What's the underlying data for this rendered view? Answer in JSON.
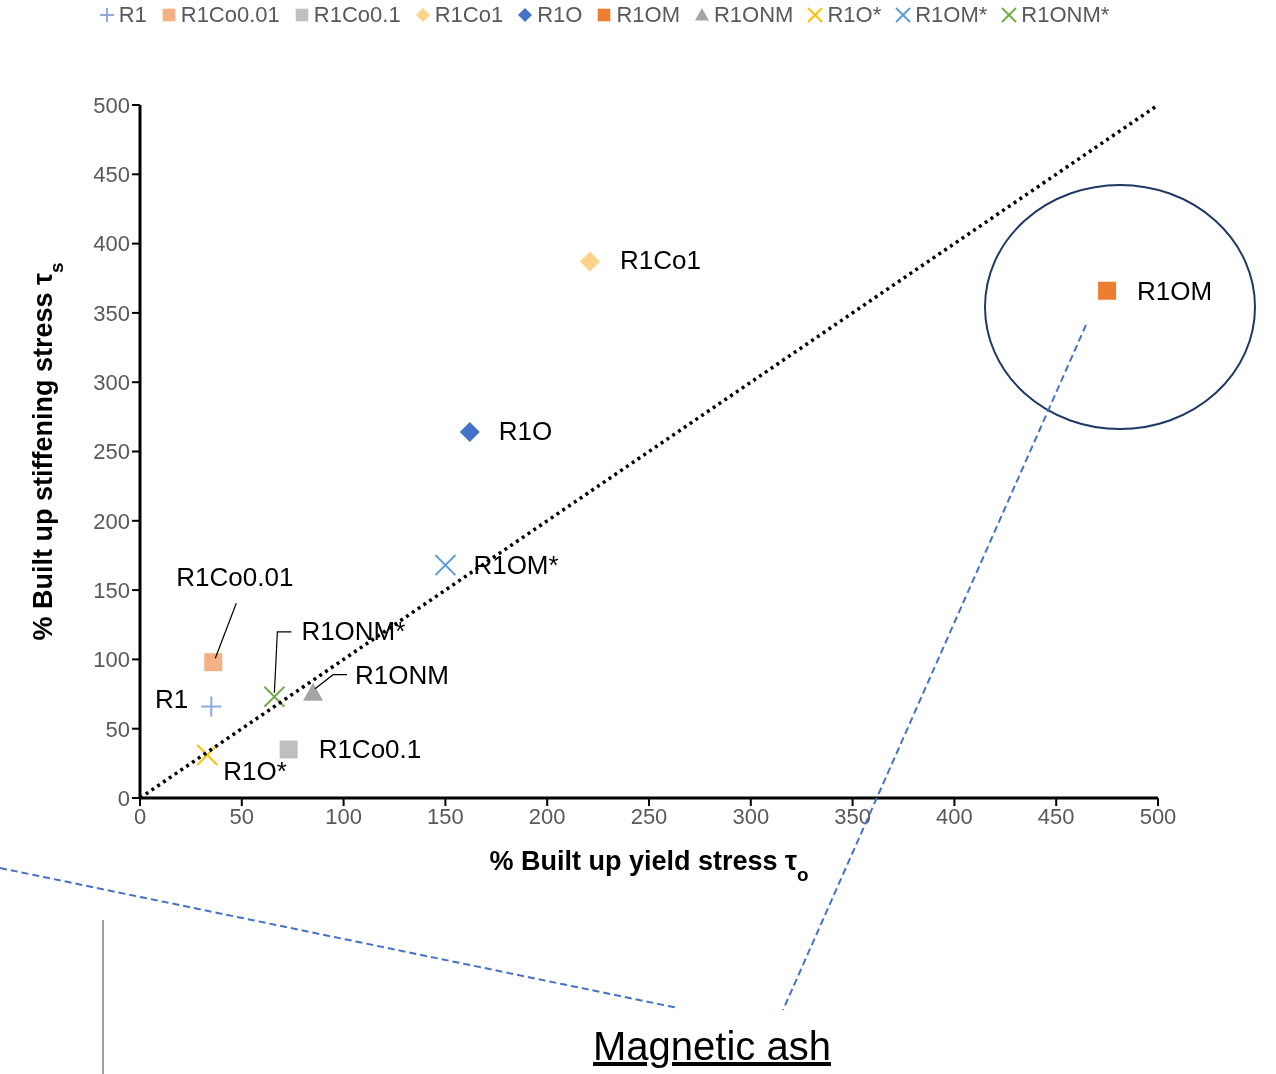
{
  "chart_data": {
    "type": "scatter",
    "xlabel": "% Built up yield stress τ$_{o}$",
    "ylabel": "% Built up stiffening stress τ$_{s}$",
    "xlim": [
      0,
      500
    ],
    "xticks": [
      0,
      50,
      100,
      150,
      200,
      250,
      300,
      350,
      400,
      450,
      500
    ],
    "ylim": [
      0,
      500
    ],
    "yticks": [
      0,
      50,
      100,
      150,
      200,
      250,
      300,
      350,
      400,
      450,
      500
    ],
    "grid": false,
    "legend": "top",
    "series": [
      {
        "name": "R1",
        "color": "#8faadc",
        "marker": "plus",
        "x": [
          35
        ],
        "values": [
          66
        ]
      },
      {
        "name": "R1Co0.01",
        "color": "#f4b183",
        "marker": "square",
        "x": [
          36
        ],
        "values": [
          98
        ]
      },
      {
        "name": "R1Co0.1",
        "color": "#bfbfbf",
        "marker": "square",
        "x": [
          73
        ],
        "values": [
          35
        ]
      },
      {
        "name": "R1Co1",
        "color": "#ffd28a",
        "marker": "diamond",
        "x": [
          221
        ],
        "values": [
          387
        ]
      },
      {
        "name": "R1O",
        "color": "#4472c4",
        "marker": "diamond",
        "x": [
          162
        ],
        "values": [
          264
        ]
      },
      {
        "name": "R1OM",
        "color": "#ed7d31",
        "marker": "square",
        "x": [
          475
        ],
        "values": [
          366
        ]
      },
      {
        "name": "R1ONM",
        "color": "#a5a5a5",
        "marker": "triangle",
        "x": [
          85
        ],
        "values": [
          76
        ]
      },
      {
        "name": "R1O*",
        "color": "#ffc000",
        "marker": "cross",
        "x": [
          33
        ],
        "values": [
          31
        ]
      },
      {
        "name": "R1OM*",
        "color": "#5b9bd5",
        "marker": "cross",
        "x": [
          150
        ],
        "values": [
          168
        ]
      },
      {
        "name": "R1ONM*",
        "color": "#70ad47",
        "marker": "cross",
        "x": [
          66
        ],
        "values": [
          73
        ]
      },
      {
        "type": "line",
        "color": "#000000",
        "line_style": "dotted",
        "marker": "none",
        "x": [
          0,
          500
        ],
        "values": [
          0,
          500
        ]
      }
    ],
    "annotations": [
      {
        "text": "R1",
        "x": 35,
        "y": 66
      },
      {
        "text": "R1Co0.01",
        "x": 36,
        "y": 98
      },
      {
        "text": "R1Co0.1",
        "x": 73,
        "y": 35
      },
      {
        "text": "R1Co1",
        "x": 221,
        "y": 387
      },
      {
        "text": "R1O",
        "x": 162,
        "y": 264
      },
      {
        "text": "R1OM",
        "x": 475,
        "y": 366
      },
      {
        "text": "R1ONM",
        "x": 85,
        "y": 76
      },
      {
        "text": "R1O*",
        "x": 33,
        "y": 31
      },
      {
        "text": "R1OM*",
        "x": 150,
        "y": 168
      },
      {
        "text": "R1ONM*",
        "x": 66,
        "y": 73
      },
      "Magnetic ash"
    ]
  }
}
